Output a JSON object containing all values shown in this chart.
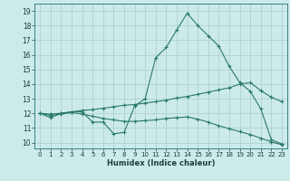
{
  "title": "",
  "xlabel": "Humidex (Indice chaleur)",
  "bg_color": "#cceaea",
  "grid_color": "#aacccc",
  "line_color": "#2a7a6a",
  "x_ticks": [
    0,
    1,
    2,
    3,
    4,
    5,
    6,
    7,
    8,
    9,
    10,
    11,
    12,
    13,
    14,
    15,
    16,
    17,
    18,
    19,
    20,
    21,
    22,
    23
  ],
  "y_ticks": [
    10,
    11,
    12,
    13,
    14,
    15,
    16,
    17,
    18,
    19
  ],
  "xlim": [
    -0.5,
    23.5
  ],
  "ylim": [
    9.6,
    19.5
  ],
  "line1_x": [
    0,
    1,
    2,
    3,
    4,
    5,
    6,
    7,
    8,
    9,
    10,
    11,
    12,
    13,
    14,
    15,
    16,
    17,
    18,
    19,
    20,
    21,
    22,
    23
  ],
  "line1_y": [
    12.0,
    11.7,
    12.0,
    12.1,
    12.1,
    11.4,
    11.4,
    10.6,
    10.7,
    12.5,
    13.0,
    15.8,
    16.5,
    17.7,
    18.85,
    18.0,
    17.3,
    16.6,
    15.2,
    14.1,
    13.5,
    12.3,
    10.2,
    9.9
  ],
  "line2_x": [
    0,
    1,
    2,
    3,
    4,
    5,
    6,
    7,
    8,
    9,
    10,
    11,
    12,
    13,
    14,
    15,
    16,
    17,
    18,
    19,
    20,
    21,
    22,
    23
  ],
  "line2_y": [
    12.0,
    11.95,
    12.0,
    12.1,
    12.2,
    12.25,
    12.35,
    12.45,
    12.55,
    12.6,
    12.7,
    12.8,
    12.9,
    13.05,
    13.15,
    13.3,
    13.45,
    13.6,
    13.75,
    14.0,
    14.1,
    13.55,
    13.1,
    12.8
  ],
  "line3_x": [
    0,
    1,
    2,
    3,
    4,
    5,
    6,
    7,
    8,
    9,
    10,
    11,
    12,
    13,
    14,
    15,
    16,
    17,
    18,
    19,
    20,
    21,
    22,
    23
  ],
  "line3_y": [
    12.0,
    11.85,
    11.95,
    12.05,
    11.95,
    11.8,
    11.65,
    11.55,
    11.45,
    11.45,
    11.5,
    11.55,
    11.65,
    11.7,
    11.75,
    11.6,
    11.4,
    11.15,
    10.95,
    10.75,
    10.55,
    10.3,
    10.05,
    9.85
  ]
}
